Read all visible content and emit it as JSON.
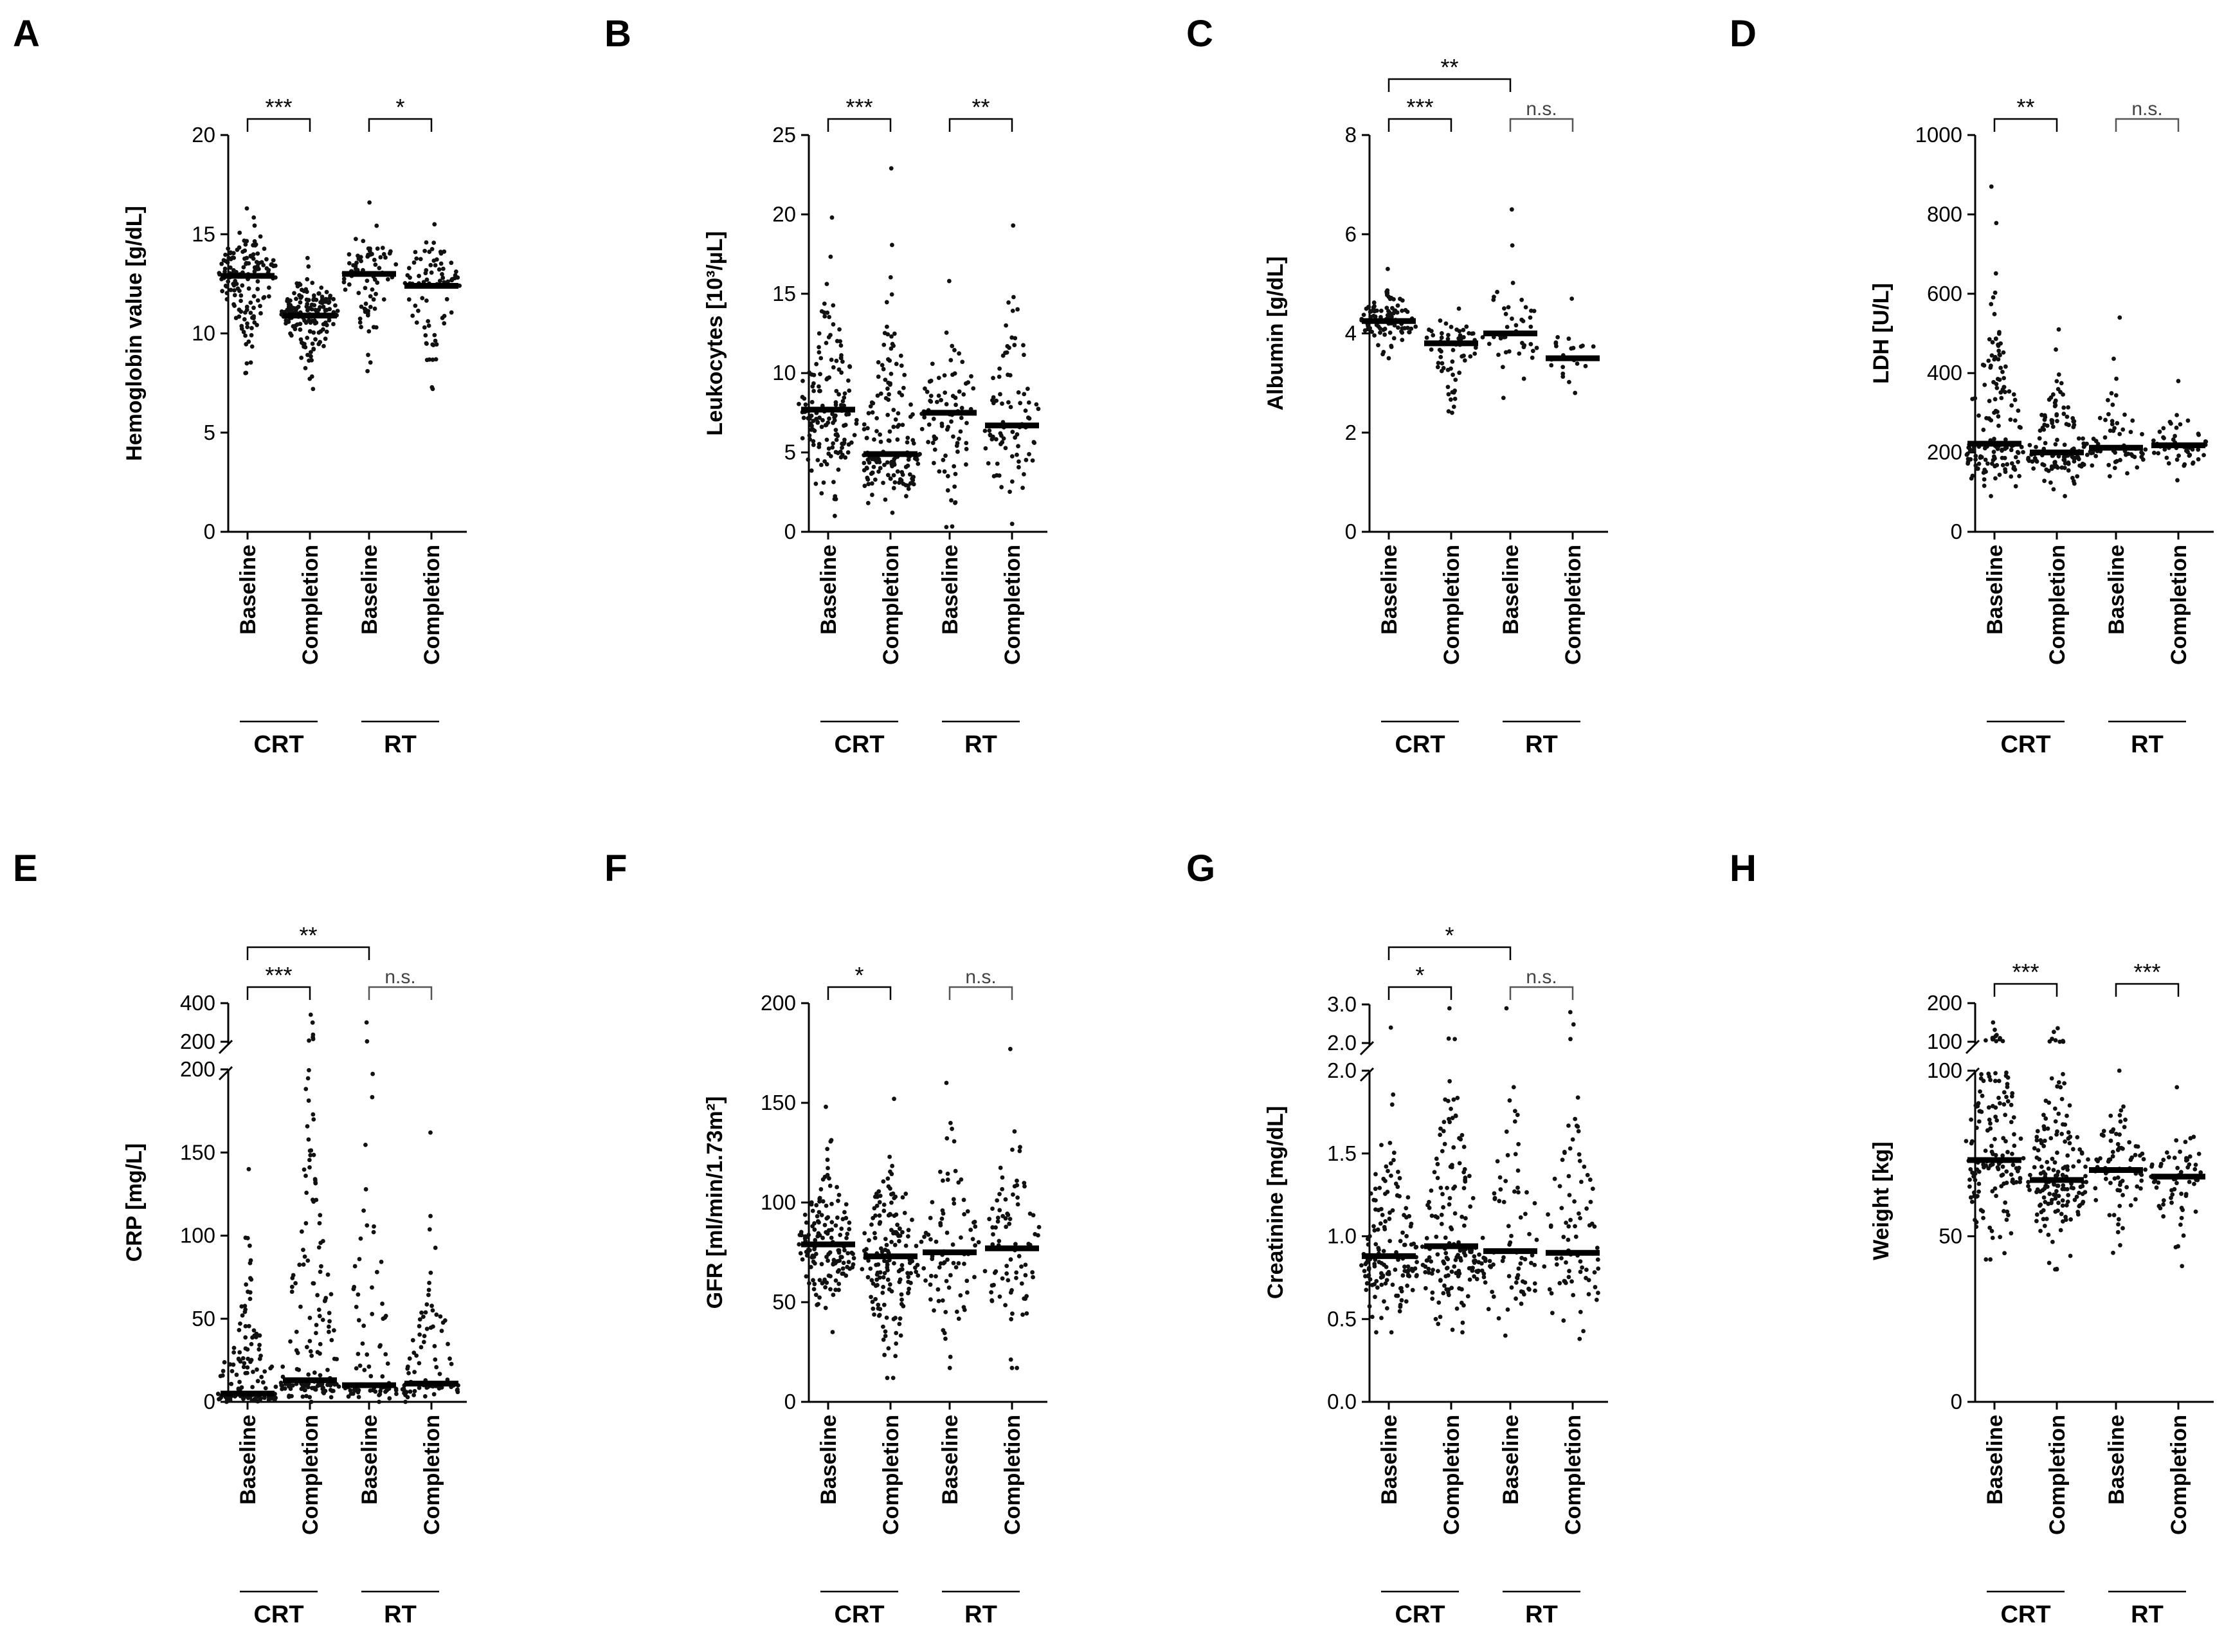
{
  "figure": {
    "categories": [
      "Baseline",
      "Completion",
      "Baseline",
      "Completion"
    ],
    "groups": [
      "CRT",
      "RT"
    ]
  },
  "chart_data": [
    {
      "panel": "A",
      "type": "scatter",
      "ylabel": "Hemoglobin value [g/dL]",
      "ylim": [
        0,
        20
      ],
      "yticks": [
        {
          "v": 0,
          "t": "0"
        },
        {
          "v": 5,
          "t": "5"
        },
        {
          "v": 10,
          "t": "10"
        },
        {
          "v": 15,
          "t": "15"
        },
        {
          "v": 20,
          "t": "20"
        }
      ],
      "medians": [
        12.9,
        10.9,
        13.0,
        12.4
      ],
      "ranges": [
        [
          8.0,
          16.3
        ],
        [
          7.2,
          13.8
        ],
        [
          8.1,
          16.6
        ],
        [
          7.2,
          15.5
        ]
      ],
      "counts": [
        150,
        160,
        80,
        80
      ],
      "comparisons": [
        {
          "a": 0,
          "b": 1,
          "label": "***",
          "level": 0
        },
        {
          "a": 2,
          "b": 3,
          "label": "*",
          "level": 0
        }
      ]
    },
    {
      "panel": "B",
      "type": "scatter",
      "ylabel": "Leukocytes [10³/µL]",
      "ylim": [
        0,
        25
      ],
      "yticks": [
        {
          "v": 0,
          "t": "0"
        },
        {
          "v": 5,
          "t": "5"
        },
        {
          "v": 10,
          "t": "10"
        },
        {
          "v": 15,
          "t": "15"
        },
        {
          "v": 20,
          "t": "20"
        },
        {
          "v": 25,
          "t": "25"
        }
      ],
      "medians": [
        7.7,
        4.9,
        7.5,
        6.7
      ],
      "ranges": [
        [
          1.0,
          19.8
        ],
        [
          1.2,
          22.9
        ],
        [
          0.3,
          15.8
        ],
        [
          0.5,
          19.3
        ]
      ],
      "counts": [
        150,
        160,
        80,
        80
      ],
      "comparisons": [
        {
          "a": 0,
          "b": 1,
          "label": "***",
          "level": 0
        },
        {
          "a": 2,
          "b": 3,
          "label": "**",
          "level": 0
        }
      ]
    },
    {
      "panel": "C",
      "type": "scatter",
      "ylabel": "Albumin [g/dL]",
      "ylim": [
        0,
        8
      ],
      "yticks": [
        {
          "v": 0,
          "t": "0"
        },
        {
          "v": 2,
          "t": "2"
        },
        {
          "v": 4,
          "t": "4"
        },
        {
          "v": 6,
          "t": "6"
        },
        {
          "v": 8,
          "t": "8"
        }
      ],
      "medians": [
        4.25,
        3.8,
        4.0,
        3.5
      ],
      "ranges": [
        [
          3.5,
          5.3
        ],
        [
          2.4,
          4.5
        ],
        [
          2.7,
          6.5
        ],
        [
          2.8,
          4.7
        ]
      ],
      "counts": [
        90,
        60,
        40,
        20
      ],
      "comparisons": [
        {
          "a": 0,
          "b": 1,
          "label": "***",
          "level": 0
        },
        {
          "a": 2,
          "b": 3,
          "label": "n.s.",
          "level": 0
        },
        {
          "a": 0,
          "b": 2,
          "label": "**",
          "level": 1
        }
      ]
    },
    {
      "panel": "D",
      "type": "scatter",
      "ylabel": "LDH [U/L]",
      "ylim": [
        0,
        1000
      ],
      "yticks": [
        {
          "v": 0,
          "t": "0"
        },
        {
          "v": 200,
          "t": "200"
        },
        {
          "v": 400,
          "t": "400"
        },
        {
          "v": 600,
          "t": "600"
        },
        {
          "v": 800,
          "t": "800"
        },
        {
          "v": 1000,
          "t": "1000"
        }
      ],
      "medians": [
        222,
        200,
        212,
        218
      ],
      "ranges": [
        [
          90,
          870
        ],
        [
          90,
          510
        ],
        [
          140,
          540
        ],
        [
          130,
          380
        ]
      ],
      "counts": [
        150,
        120,
        60,
        50
      ],
      "comparisons": [
        {
          "a": 0,
          "b": 1,
          "label": "**",
          "level": 0
        },
        {
          "a": 2,
          "b": 3,
          "label": "n.s.",
          "level": 0
        }
      ]
    },
    {
      "panel": "E",
      "type": "scatter",
      "ylabel": "CRP [mg/L]",
      "broken_axis": true,
      "lower_range": [
        0,
        200
      ],
      "upper_range": [
        200,
        400
      ],
      "yticks": [
        {
          "v": 0,
          "t": "0"
        },
        {
          "v": 50,
          "t": "50"
        },
        {
          "v": 100,
          "t": "100"
        },
        {
          "v": 150,
          "t": "150"
        },
        {
          "v": 200,
          "t": "200"
        }
      ],
      "upper_ticks": [
        {
          "v": 200,
          "t": "200"
        },
        {
          "v": 400,
          "t": "400"
        }
      ],
      "medians": [
        5,
        13,
        10,
        11
      ],
      "ranges": [
        [
          0,
          140
        ],
        [
          0,
          340
        ],
        [
          0,
          300
        ],
        [
          0,
          162
        ]
      ],
      "counts": [
        150,
        160,
        80,
        80
      ],
      "comparisons": [
        {
          "a": 0,
          "b": 1,
          "label": "***",
          "level": 0
        },
        {
          "a": 2,
          "b": 3,
          "label": "n.s.",
          "level": 0
        },
        {
          "a": 0,
          "b": 2,
          "label": "**",
          "level": 1
        }
      ]
    },
    {
      "panel": "F",
      "type": "scatter",
      "ylabel": "GFR [ml/min/1.73m²]",
      "ylim": [
        0,
        200
      ],
      "yticks": [
        {
          "v": 0,
          "t": "0"
        },
        {
          "v": 50,
          "t": "50"
        },
        {
          "v": 100,
          "t": "100"
        },
        {
          "v": 150,
          "t": "150"
        },
        {
          "v": 200,
          "t": "200"
        }
      ],
      "medians": [
        79,
        73,
        75,
        77
      ],
      "ranges": [
        [
          35,
          148
        ],
        [
          12,
          152
        ],
        [
          17,
          160
        ],
        [
          17,
          177
        ]
      ],
      "counts": [
        150,
        160,
        80,
        80
      ],
      "comparisons": [
        {
          "a": 0,
          "b": 1,
          "label": "*",
          "level": 0
        },
        {
          "a": 2,
          "b": 3,
          "label": "n.s.",
          "level": 0
        }
      ]
    },
    {
      "panel": "G",
      "type": "scatter",
      "ylabel": "Creatinine [mg/dL]",
      "broken_axis": true,
      "lower_range": [
        0,
        2.0
      ],
      "upper_range": [
        2.0,
        3.0
      ],
      "yticks": [
        {
          "v": 0,
          "t": "0.0"
        },
        {
          "v": 0.5,
          "t": "0.5"
        },
        {
          "v": 1.0,
          "t": "1.0"
        },
        {
          "v": 1.5,
          "t": "1.5"
        },
        {
          "v": 2.0,
          "t": "2.0"
        }
      ],
      "upper_ticks": [
        {
          "v": 2.0,
          "t": "2.0"
        },
        {
          "v": 3.0,
          "t": "3.0"
        }
      ],
      "medians": [
        0.88,
        0.94,
        0.91,
        0.9
      ],
      "ranges": [
        [
          0.42,
          2.4
        ],
        [
          0.42,
          2.9
        ],
        [
          0.4,
          2.9
        ],
        [
          0.38,
          2.8
        ]
      ],
      "counts": [
        150,
        160,
        80,
        80
      ],
      "comparisons": [
        {
          "a": 0,
          "b": 1,
          "label": "*",
          "level": 0
        },
        {
          "a": 2,
          "b": 3,
          "label": "n.s.",
          "level": 0
        },
        {
          "a": 0,
          "b": 2,
          "label": "*",
          "level": 1
        }
      ]
    },
    {
      "panel": "H",
      "type": "scatter",
      "ylabel": "Weight [kg]",
      "broken_axis": true,
      "lower_range": [
        0,
        100
      ],
      "upper_range": [
        100,
        200
      ],
      "yticks": [
        {
          "v": 0,
          "t": "0"
        },
        {
          "v": 50,
          "t": "50"
        },
        {
          "v": 100,
          "t": "100"
        }
      ],
      "upper_ticks": [
        {
          "v": 100,
          "t": "100"
        },
        {
          "v": 200,
          "t": "200"
        }
      ],
      "medians": [
        73,
        67,
        70,
        68
      ],
      "ranges": [
        [
          43,
          150
        ],
        [
          40,
          135
        ],
        [
          45,
          100
        ],
        [
          41,
          95
        ]
      ],
      "counts": [
        150,
        160,
        80,
        60
      ],
      "comparisons": [
        {
          "a": 0,
          "b": 1,
          "label": "***",
          "level": 0
        },
        {
          "a": 2,
          "b": 3,
          "label": "***",
          "level": 0
        }
      ]
    }
  ]
}
